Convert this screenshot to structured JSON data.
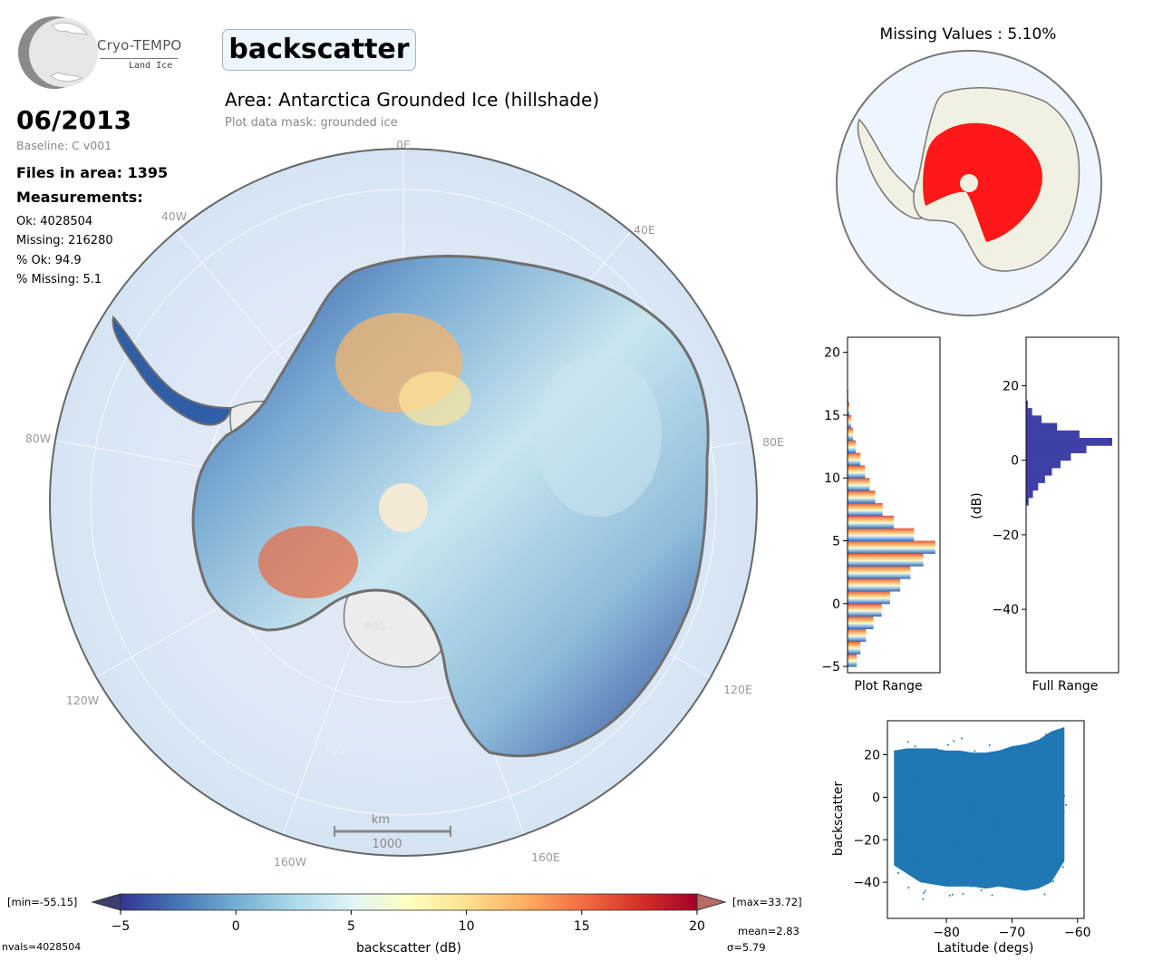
{
  "logo": {
    "name": "Cryo-TEMPO",
    "subtitle": "Land Ice"
  },
  "parameter": "backscatter",
  "date": "06/2013",
  "baseline": "Baseline: C v001",
  "files_in_area": "Files in area: 1395",
  "measurements_title": "Measurements:",
  "stats": {
    "ok": "Ok: 4028504",
    "missing": "Missing: 216280",
    "pct_ok": "% Ok: 94.9",
    "pct_missing": "% Missing: 5.1"
  },
  "area_title": "Area: Antarctica Grounded Ice (hillshade)",
  "mask_text": "Plot data mask: grounded ice",
  "missing_title": "Missing Values : 5.10%",
  "map": {
    "longitude_labels": {
      "lon_0e": "0E",
      "lon_40e": "40E",
      "lon_80e": "80E",
      "lon_120e": "120E",
      "lon_160e": "160E",
      "lon_160w": "160W",
      "lon_120w": "120W",
      "lon_80w": "80W",
      "lon_40w": "40W"
    },
    "latitude_labels": {
      "lat_80s": "80S",
      "lat_70s": "70S"
    },
    "scale_bar": {
      "unit": "km",
      "length": "1000"
    },
    "colors": {
      "ocean": "#dae7f4",
      "ice_shelf": "#ededed",
      "coast": "#6f6f6f"
    }
  },
  "colorbar": {
    "label": "backscatter (dB)",
    "ticks": [
      "−5",
      "0",
      "5",
      "10",
      "15",
      "20"
    ],
    "min_label": "[min=-55.15]",
    "max_label": "[max=33.72]",
    "mean_label": "mean=2.83",
    "sigma_label": "σ=5.79",
    "nvals_label": "nvals=4028504",
    "colormap": "RdYlBu_r"
  },
  "chart_data": [
    {
      "type": "bar",
      "orientation": "horizontal",
      "xlabel": "Plot Range",
      "ylim": [
        -5.5,
        21.2
      ],
      "ytick_labels": [
        "−5",
        "0",
        "5",
        "10",
        "15",
        "20"
      ],
      "yticks": [
        -5,
        0,
        5,
        10,
        15,
        20
      ],
      "bins": [
        -5,
        -4,
        -3,
        -2,
        -1,
        0,
        1,
        2,
        3,
        4,
        5,
        6,
        7,
        8,
        9,
        10,
        11,
        12,
        13,
        14,
        15,
        16
      ],
      "counts": [
        0.1,
        0.14,
        0.2,
        0.28,
        0.37,
        0.46,
        0.57,
        0.68,
        0.82,
        0.95,
        0.72,
        0.5,
        0.38,
        0.3,
        0.24,
        0.19,
        0.14,
        0.09,
        0.06,
        0.04,
        0.02,
        0.01
      ]
    },
    {
      "type": "bar",
      "orientation": "horizontal",
      "xlabel": "Full Range",
      "ylabel": "(dB)",
      "ylim": [
        -57,
        33
      ],
      "ytick_labels": [
        "20",
        "0",
        "−20",
        "−40"
      ],
      "yticks": [
        20,
        0,
        -20,
        -40
      ],
      "bins": [
        -12,
        -10,
        -8,
        -6,
        -4,
        -2,
        0,
        2,
        4,
        6,
        8,
        10,
        12,
        14
      ],
      "counts": [
        0.03,
        0.08,
        0.14,
        0.22,
        0.3,
        0.4,
        0.52,
        0.7,
        1.0,
        0.62,
        0.36,
        0.18,
        0.07,
        0.02
      ]
    },
    {
      "type": "scatter",
      "xlabel": "Latitude (degs)",
      "ylabel": "backscatter",
      "xlim": [
        -89,
        -59
      ],
      "ylim": [
        -57,
        36
      ],
      "xtick_labels": [
        "−80",
        "−70",
        "−60"
      ],
      "xticks": [
        -80,
        -70,
        -60
      ],
      "ytick_labels": [
        "20",
        "0",
        "−20",
        "−40"
      ],
      "yticks": [
        20,
        0,
        -20,
        -40
      ],
      "envelope": {
        "lat": [
          -88,
          -86,
          -84,
          -82,
          -80,
          -78,
          -76,
          -74,
          -72,
          -70,
          -68,
          -66,
          -64,
          -62
        ],
        "upper": [
          22,
          23,
          23,
          23,
          22,
          22,
          21,
          21,
          22,
          24,
          25,
          27,
          31,
          33
        ],
        "lower": [
          -32,
          -36,
          -40,
          -41,
          -42,
          -42,
          -42,
          -43,
          -42,
          -43,
          -44,
          -43,
          -40,
          -30
        ]
      },
      "color": "#1f77b4"
    }
  ]
}
